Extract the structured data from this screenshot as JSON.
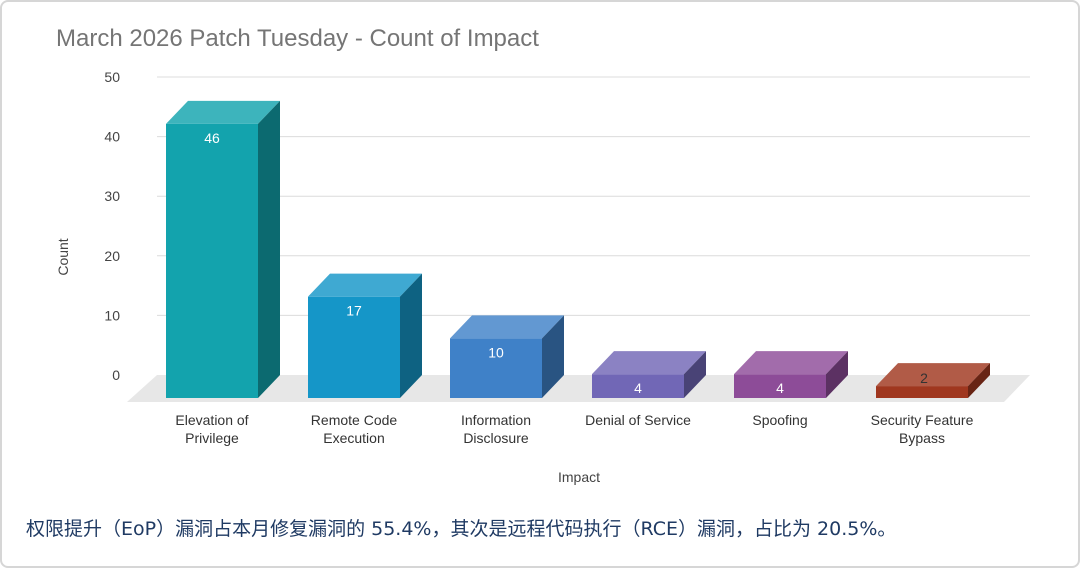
{
  "chart_data": {
    "type": "bar",
    "title": "March 2026 Patch Tuesday - Count of Impact",
    "xlabel": "Impact",
    "ylabel": "Count",
    "ylim": [
      0,
      50
    ],
    "yticks": [
      "0",
      "10",
      "20",
      "30",
      "40",
      "50"
    ],
    "grid": true,
    "style": "3d",
    "categories": [
      [
        "Elevation of",
        "Privilege"
      ],
      [
        "Remote Code",
        "Execution"
      ],
      [
        "Information",
        "Disclosure"
      ],
      [
        "Denial of Service"
      ],
      [
        "Spoofing"
      ],
      [
        "Security Feature",
        "Bypass"
      ]
    ],
    "values": [
      46,
      17,
      10,
      4,
      4,
      2
    ],
    "data_labels": [
      "46",
      "17",
      "10",
      "4",
      "4",
      "2"
    ],
    "colors": [
      "#13a3ad",
      "#1596c8",
      "#3f81c8",
      "#7167b6",
      "#8d4c98",
      "#a0371f"
    ]
  },
  "caption": "权限提升（EoP）漏洞占本月修复漏洞的 55.4%，其次是远程代码执行（RCE）漏洞，占比为 20.5%。"
}
